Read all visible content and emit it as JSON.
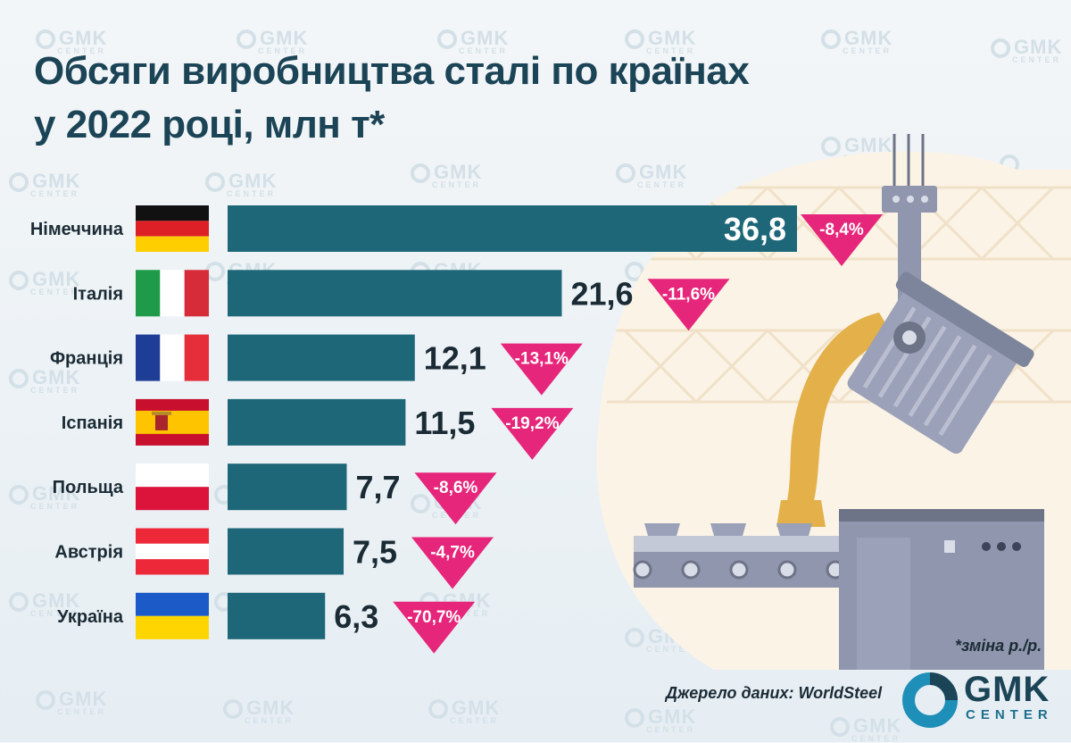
{
  "title_line1": "Обсяги виробництва сталі по країнах",
  "title_line2": "у 2022 році, млн т*",
  "footnote": "*зміна р./р.",
  "source": "Джерело даних: WorldSteel",
  "logo": {
    "name": "GMK",
    "sub": "CENTER"
  },
  "watermark": {
    "name": "GMK",
    "sub": "CENTER"
  },
  "colors": {
    "bar": "#1d6778",
    "badge": "#e6267a",
    "title": "#1b4456"
  },
  "chart_data": {
    "type": "bar",
    "orientation": "horizontal",
    "title": "Обсяги виробництва сталі по країнах у 2022 році, млн т*",
    "categories": [
      "Німеччина",
      "Італія",
      "Франція",
      "Іспанія",
      "Польща",
      "Австрія",
      "Україна"
    ],
    "values": [
      36.8,
      21.6,
      12.1,
      11.5,
      7.7,
      7.5,
      6.3
    ],
    "value_labels": [
      "36,8",
      "21,6",
      "12,1",
      "11,5",
      "7,7",
      "7,5",
      "6,3"
    ],
    "changes": [
      "-8,4%",
      "-11,6%",
      "-13,1%",
      "-19,2%",
      "-8,6%",
      "-4,7%",
      "-70,7%"
    ],
    "flags": [
      "germany-flag",
      "italy-flag",
      "france-flag",
      "spain-flag",
      "poland-flag",
      "austria-flag",
      "ukraine-flag"
    ],
    "xlim": [
      0,
      38
    ]
  }
}
